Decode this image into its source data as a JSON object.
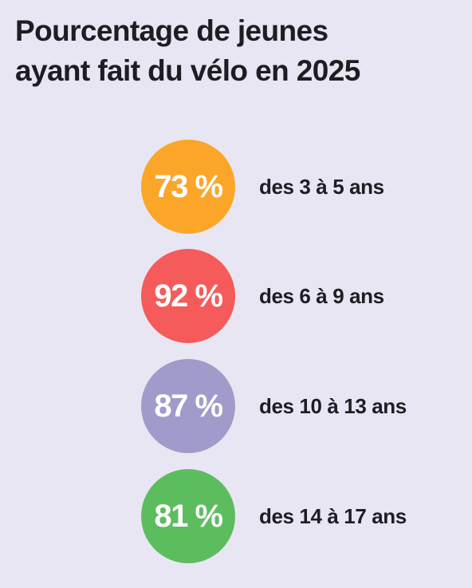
{
  "title_lines": [
    "Pourcentage de jeunes",
    "ayant fait du vélo en 2025"
  ],
  "chart_data": {
    "type": "bubble-list",
    "title": "Pourcentage de jeunes ayant fait du vélo en 2025",
    "categories": [
      "des 3 à 5 ans",
      "des 6 à 9 ans",
      "des 10 à 13 ans",
      "des 14 à 17 ans"
    ],
    "values": [
      73,
      92,
      87,
      81
    ],
    "value_labels": [
      "73 %",
      "92 %",
      "87 %",
      "81 %"
    ],
    "unit": "%",
    "colors": [
      "#fba629",
      "#f45b5a",
      "#a09bca",
      "#5cbd5e"
    ]
  }
}
